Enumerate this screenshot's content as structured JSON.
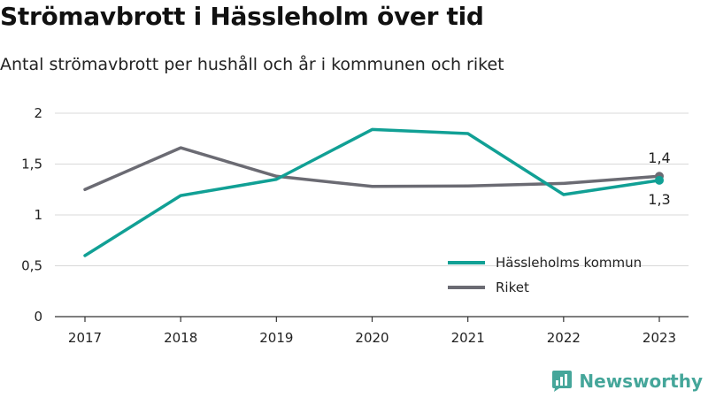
{
  "header": {
    "title": "Strömavbrott i Hässleholm över tid",
    "subtitle": "Antal strömavbrott per hushåll och år i kommunen och riket"
  },
  "chart_data": {
    "type": "line",
    "x": [
      "2017",
      "2018",
      "2019",
      "2020",
      "2021",
      "2022",
      "2023"
    ],
    "series": [
      {
        "name": "Hässleholms kommun",
        "color": "#11a095",
        "values": [
          0.6,
          1.19,
          1.35,
          1.84,
          1.8,
          1.2,
          1.34
        ]
      },
      {
        "name": "Riket",
        "color": "#6b6b73",
        "values": [
          1.25,
          1.66,
          1.38,
          1.28,
          1.285,
          1.31,
          1.38
        ]
      }
    ],
    "yticks": [
      0,
      0.5,
      1,
      1.5,
      2
    ],
    "ytick_labels": [
      "0",
      "0,5",
      "1",
      "1,5",
      "2"
    ],
    "ylim": [
      0,
      2
    ],
    "grid": true,
    "legend_position": "bottom-right",
    "end_labels": {
      "Riket": "1,4",
      "Hässleholms kommun": "1,3"
    }
  },
  "branding": {
    "name": "Newsworthy",
    "icon": "newsworthy-logo-icon",
    "color": "#45a69a"
  }
}
